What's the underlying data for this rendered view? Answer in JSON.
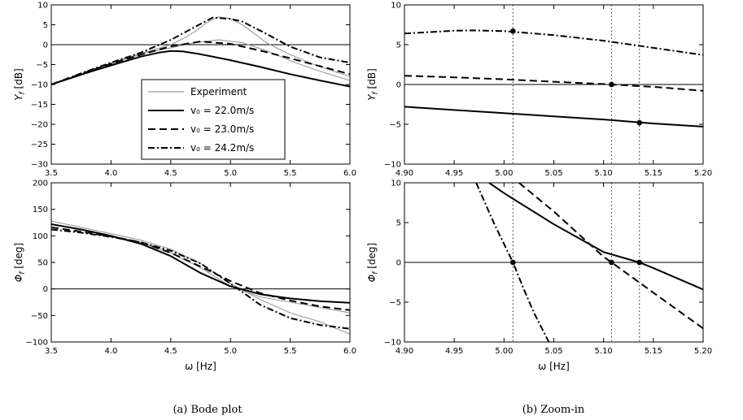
{
  "captions": {
    "left": "(a)  Bode plot",
    "right": "(b)  Zoom-in"
  },
  "legend": {
    "entries": [
      "Experiment",
      "v₀ = 22.0m/s",
      "v₀ = 23.0m/s",
      "v₀ = 24.2m/s"
    ]
  },
  "chart_data": [
    {
      "type": "line",
      "panel": "bode-magnitude",
      "ylabel": "Y_f [dB]",
      "xlabel": "",
      "xlim": [
        3.5,
        6.0
      ],
      "ylim": [
        -30,
        10
      ],
      "xticks": [
        "3.5",
        "4.0",
        "4.5",
        "5.0",
        "5.5",
        "6.0"
      ],
      "yticks": [
        "10",
        "5",
        "0",
        "−5",
        "−10",
        "−15",
        "−20",
        "−25",
        "−30"
      ],
      "reference_line_y": 0,
      "series": [
        {
          "name": "v₀ = 22.0m/s",
          "style": "solid",
          "x": [
            3.5,
            3.75,
            4.0,
            4.25,
            4.4,
            4.5,
            4.6,
            4.75,
            5.0,
            5.25,
            5.5,
            5.75,
            6.0
          ],
          "y": [
            -10.0,
            -7.5,
            -5.2,
            -3.0,
            -2.0,
            -1.6,
            -1.7,
            -2.4,
            -3.9,
            -5.6,
            -7.4,
            -9.0,
            -10.5
          ]
        },
        {
          "name": "v₀ = 23.0m/s",
          "style": "dashed",
          "x": [
            3.5,
            3.75,
            4.0,
            4.25,
            4.5,
            4.75,
            5.0,
            5.25,
            5.5,
            5.75,
            6.0
          ],
          "y": [
            -10.0,
            -7.3,
            -4.8,
            -2.5,
            -0.4,
            0.8,
            0.2,
            -1.5,
            -3.4,
            -5.4,
            -7.4
          ]
        },
        {
          "name": "v₀ = 24.2m/s",
          "style": "dashdot",
          "x": [
            3.5,
            3.75,
            4.0,
            4.25,
            4.5,
            4.75,
            4.85,
            5.0,
            5.1,
            5.25,
            5.5,
            5.75,
            6.0
          ],
          "y": [
            -10.0,
            -7.2,
            -4.5,
            -2.0,
            1.2,
            5.2,
            6.8,
            6.5,
            5.8,
            3.5,
            -0.5,
            -3.2,
            -4.5
          ]
        },
        {
          "name": "Experiment",
          "style": "gray",
          "x": [
            3.5,
            3.7,
            3.9,
            4.1,
            4.3,
            4.5,
            4.6,
            4.7,
            4.8,
            4.9,
            5.0,
            5.1,
            5.2,
            5.3,
            5.5,
            5.7,
            6.0
          ],
          "y": [
            -10.0,
            -8.0,
            -5.8,
            -3.6,
            -1.8,
            0.0,
            1.5,
            3.2,
            5.5,
            7.0,
            6.5,
            5.0,
            2.8,
            0.5,
            -2.5,
            -5.0,
            -8.0
          ]
        },
        {
          "name": "Experiment",
          "style": "gray",
          "x": [
            3.5,
            3.7,
            3.9,
            4.1,
            4.3,
            4.5,
            4.7,
            4.9,
            5.1,
            5.3,
            5.5,
            5.7,
            6.0
          ],
          "y": [
            -10.0,
            -8.2,
            -6.0,
            -3.8,
            -2.0,
            -0.8,
            0.5,
            1.2,
            0.5,
            -1.5,
            -4.0,
            -6.2,
            -9.0
          ]
        }
      ]
    },
    {
      "type": "line",
      "panel": "bode-phase",
      "ylabel": "Φ_f [deg]",
      "xlabel": "ω [Hz]",
      "xlim": [
        3.5,
        6.0
      ],
      "ylim": [
        -100,
        200
      ],
      "xticks": [
        "3.5",
        "4.0",
        "4.5",
        "5.0",
        "5.5",
        "6.0"
      ],
      "yticks": [
        "200",
        "150",
        "100",
        "50",
        "0",
        "−50",
        "−100"
      ],
      "reference_line_y": 0,
      "series": [
        {
          "name": "v₀ = 22.0m/s",
          "style": "solid",
          "x": [
            3.5,
            3.75,
            4.0,
            4.25,
            4.5,
            4.75,
            5.0,
            5.25,
            5.5,
            5.75,
            6.0
          ],
          "y": [
            122,
            112,
            100,
            85,
            62,
            30,
            5,
            -10,
            -18,
            -23,
            -26
          ]
        },
        {
          "name": "v₀ = 23.0m/s",
          "style": "dashed",
          "x": [
            3.5,
            3.75,
            4.0,
            4.25,
            4.5,
            4.75,
            5.0,
            5.25,
            5.5,
            5.75,
            6.0
          ],
          "y": [
            116,
            108,
            99,
            88,
            68,
            42,
            15,
            -8,
            -22,
            -33,
            -40
          ]
        },
        {
          "name": "v₀ = 24.2m/s",
          "style": "dashdot",
          "x": [
            3.5,
            3.75,
            4.0,
            4.25,
            4.5,
            4.75,
            5.0,
            5.25,
            5.5,
            5.75,
            6.0
          ],
          "y": [
            112,
            106,
            98,
            88,
            72,
            48,
            10,
            -30,
            -55,
            -68,
            -75
          ]
        },
        {
          "name": "Experiment",
          "style": "gray",
          "x": [
            3.5,
            3.75,
            4.0,
            4.25,
            4.5,
            4.75,
            5.0,
            5.25,
            5.5,
            5.75,
            6.0
          ],
          "y": [
            128,
            116,
            104,
            92,
            75,
            48,
            10,
            -20,
            -45,
            -62,
            -85
          ]
        },
        {
          "name": "Experiment",
          "style": "gray",
          "x": [
            3.5,
            3.75,
            4.0,
            4.25,
            4.5,
            4.75,
            5.0,
            5.25,
            5.5,
            5.75,
            6.0
          ],
          "y": [
            122,
            112,
            100,
            88,
            68,
            40,
            5,
            -15,
            -25,
            -35,
            -45
          ]
        }
      ]
    },
    {
      "type": "line",
      "panel": "zoom-magnitude",
      "ylabel": "Y_f [dB]",
      "xlabel": "",
      "xlim": [
        4.9,
        5.2
      ],
      "ylim": [
        -10,
        10
      ],
      "xticks": [
        "4.90",
        "4.95",
        "5.00",
        "5.05",
        "5.10",
        "5.15",
        "5.20"
      ],
      "yticks": [
        "10",
        "5",
        "0",
        "−5",
        "−10"
      ],
      "reference_line_y": 0,
      "vertical_dotted_x": [
        5.009,
        5.108,
        5.136
      ],
      "markers": [
        {
          "x": 5.009,
          "y": 6.7
        },
        {
          "x": 5.108,
          "y": 0.0
        },
        {
          "x": 5.136,
          "y": -4.8
        }
      ],
      "series": [
        {
          "name": "v₀ = 22.0m/s",
          "style": "solid",
          "x": [
            4.9,
            4.95,
            5.0,
            5.05,
            5.1,
            5.15,
            5.2
          ],
          "y": [
            -2.8,
            -3.2,
            -3.6,
            -4.0,
            -4.4,
            -4.9,
            -5.3
          ]
        },
        {
          "name": "v₀ = 23.0m/s",
          "style": "dashed",
          "x": [
            4.9,
            4.95,
            5.0,
            5.05,
            5.1,
            5.15,
            5.2
          ],
          "y": [
            1.1,
            0.9,
            0.65,
            0.35,
            0.05,
            -0.3,
            -0.8
          ]
        },
        {
          "name": "v₀ = 24.2m/s",
          "style": "dashdot",
          "x": [
            4.9,
            4.95,
            4.97,
            5.0,
            5.05,
            5.1,
            5.15,
            5.2
          ],
          "y": [
            6.4,
            6.75,
            6.8,
            6.7,
            6.2,
            5.5,
            4.6,
            3.7
          ]
        }
      ]
    },
    {
      "type": "line",
      "panel": "zoom-phase",
      "ylabel": "Φ_f [deg]",
      "xlabel": "ω [Hz]",
      "xlim": [
        4.9,
        5.2
      ],
      "ylim": [
        -10,
        10
      ],
      "xticks": [
        "4.90",
        "4.95",
        "5.00",
        "5.05",
        "5.10",
        "5.15",
        "5.20"
      ],
      "yticks": [
        "10",
        "5",
        "0",
        "−5",
        "−10"
      ],
      "reference_line_y": 0,
      "vertical_dotted_x": [
        5.009,
        5.108,
        5.136
      ],
      "markers": [
        {
          "x": 5.009,
          "y": 0
        },
        {
          "x": 5.108,
          "y": 0
        },
        {
          "x": 5.136,
          "y": 0
        }
      ],
      "series": [
        {
          "name": "v₀ = 22.0m/s",
          "style": "solid",
          "x": [
            4.985,
            5.0,
            5.05,
            5.1,
            5.136,
            5.15,
            5.2
          ],
          "y": [
            10.0,
            8.7,
            4.8,
            1.3,
            0.0,
            -0.7,
            -3.4
          ]
        },
        {
          "name": "v₀ = 23.0m/s",
          "style": "dashed",
          "x": [
            5.015,
            5.05,
            5.1,
            5.108,
            5.15,
            5.2
          ],
          "y": [
            10.0,
            6.4,
            0.7,
            0.0,
            -3.8,
            -8.3
          ]
        },
        {
          "name": "v₀ = 24.2m/s",
          "style": "dashdot",
          "x": [
            4.972,
            4.99,
            5.009,
            5.02,
            5.03,
            5.045
          ],
          "y": [
            10.0,
            4.9,
            0.0,
            -3.4,
            -6.3,
            -10.0
          ]
        }
      ]
    }
  ]
}
